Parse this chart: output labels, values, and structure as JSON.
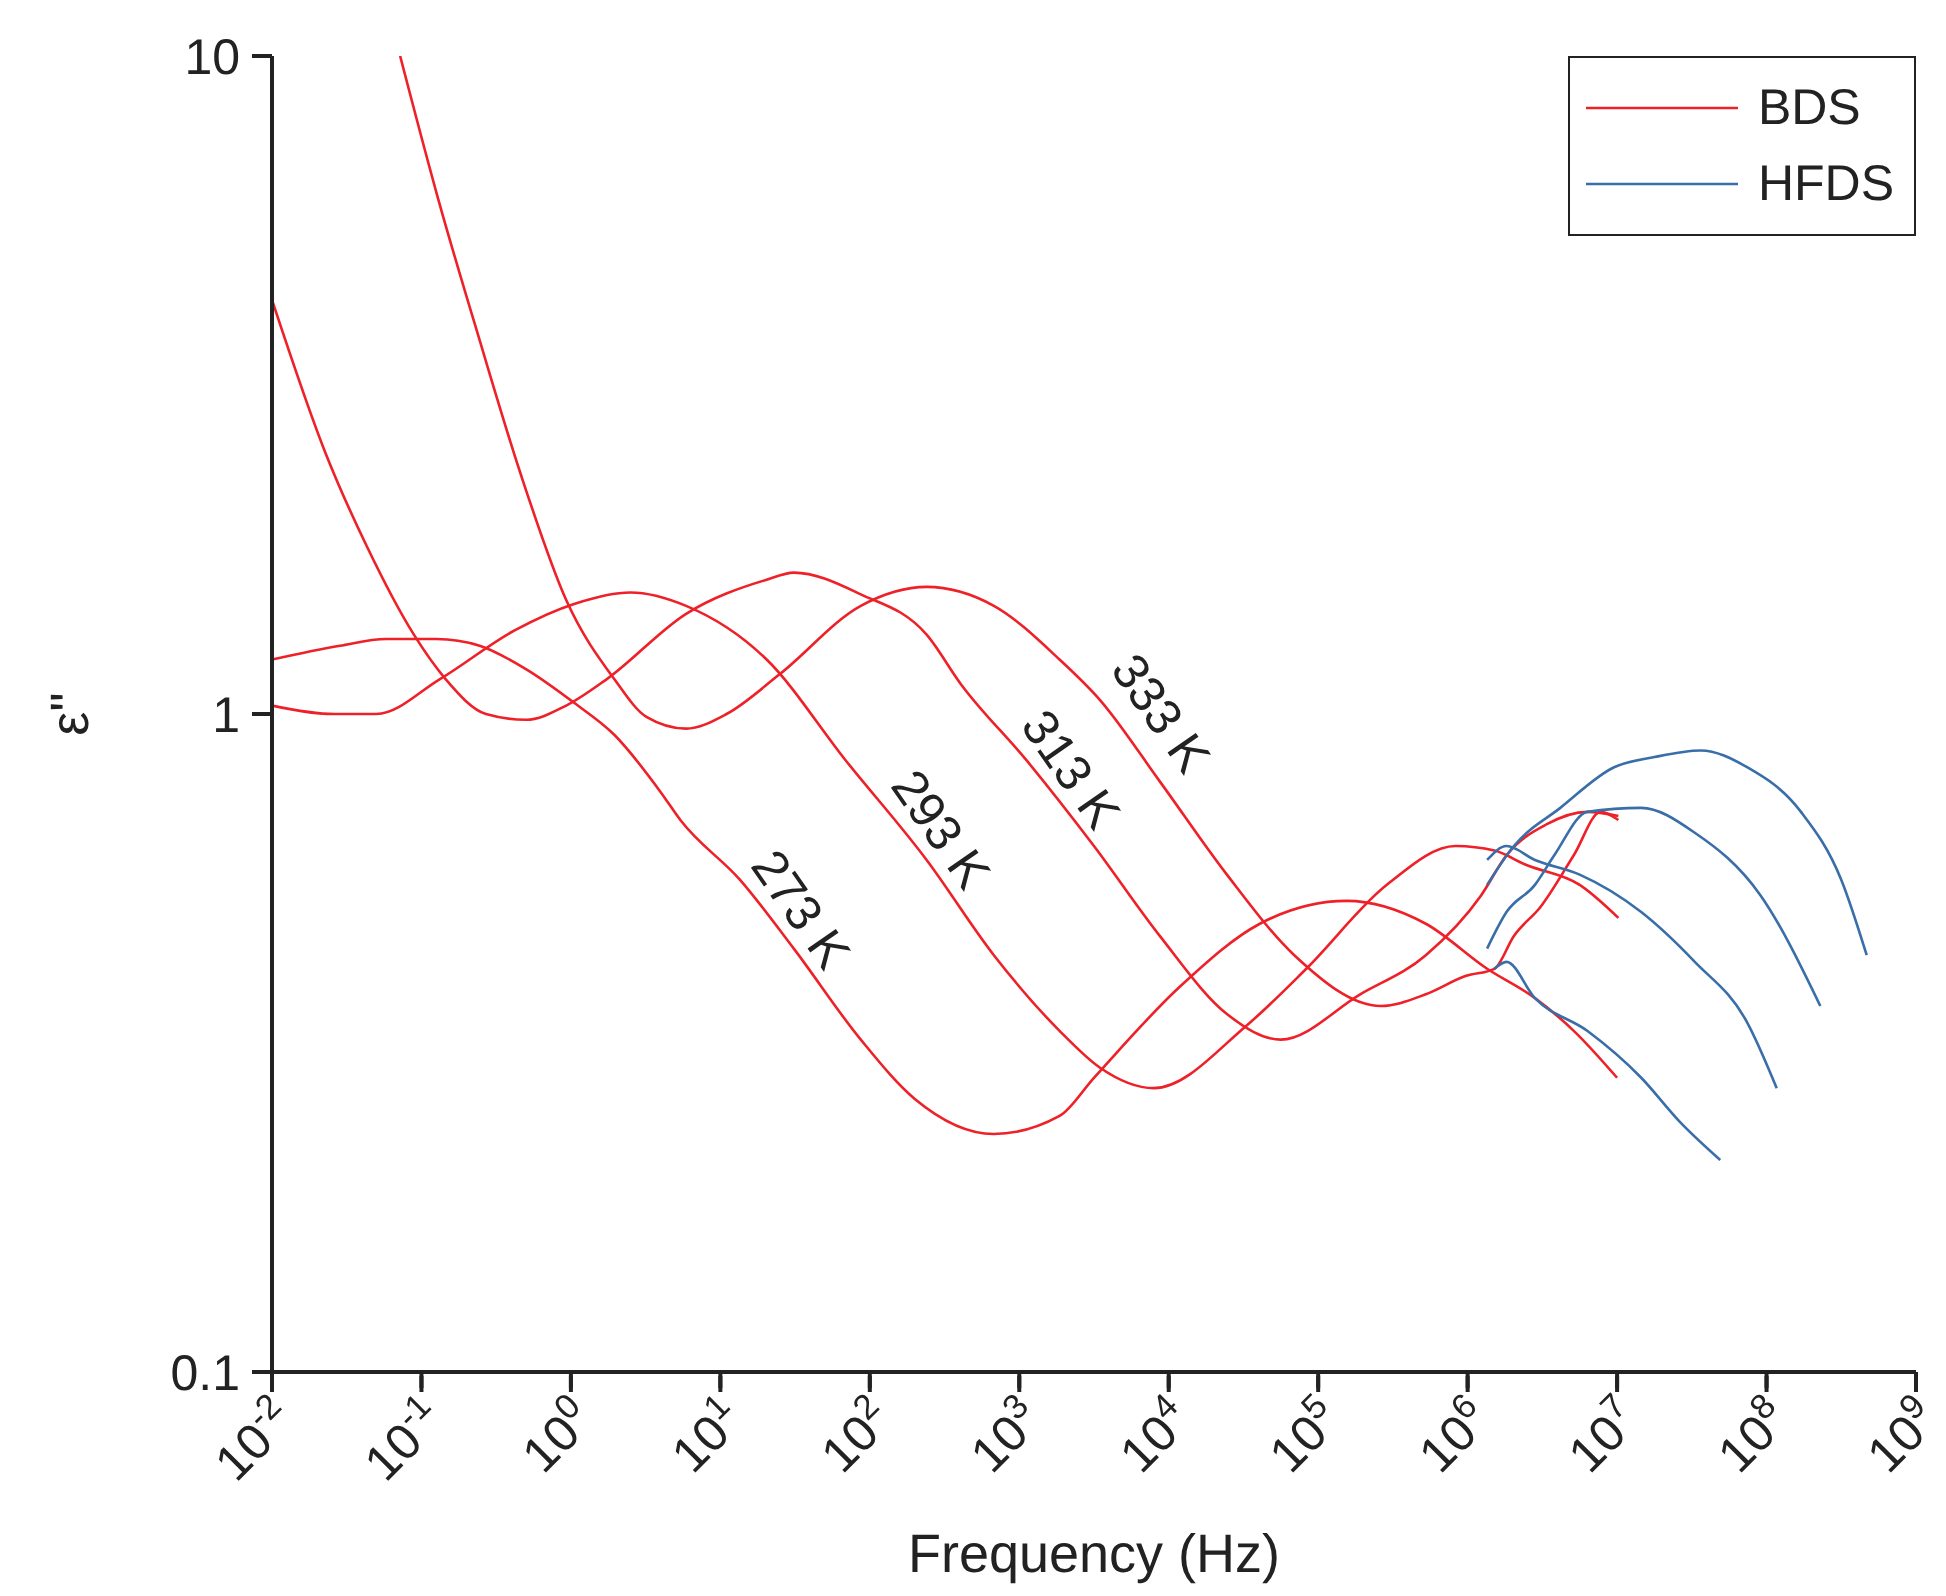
{
  "chart_data": {
    "type": "line",
    "xlabel": "Frequency (Hz)",
    "ylabel": "ε\"",
    "log": "xy",
    "legend": "top right",
    "marker": "none",
    "line_style": "solid",
    "xlim": [
      0.01,
      1000000000
    ],
    "ylim": [
      0.1,
      10
    ],
    "xticks": [
      {
        "value": 0.01,
        "label": "10$^{-2}$"
      },
      {
        "value": 0.1,
        "label": "10$^{-1}$"
      },
      {
        "value": 1,
        "label": "10$^{0}$"
      },
      {
        "value": 10,
        "label": "10$^{1}$"
      },
      {
        "value": 100,
        "label": "10$^{2}$"
      },
      {
        "value": 1000,
        "label": "10$^{3}$"
      },
      {
        "value": 10000,
        "label": "10$^{4}$"
      },
      {
        "value": 100000,
        "label": "10$^{5}$"
      },
      {
        "value": 1000000,
        "label": "10$^{6}$"
      },
      {
        "value": 10000000,
        "label": "10$^{7}$"
      },
      {
        "value": 100000000,
        "label": "10$^{8}$"
      },
      {
        "value": 1000000000,
        "label": "10$^{9}$"
      }
    ],
    "yticks": [
      0.1,
      1,
      10
    ],
    "series": [
      {
        "name": "BDS",
        "color": "#ee2028",
        "x": [
          0.01,
          0.0285,
          0.058,
          0.126,
          0.245,
          0.5,
          1.05,
          1.95,
          4.0,
          5.4,
          13.5,
          31,
          87,
          200,
          676,
          1860,
          3160,
          12000,
          40700,
          155000,
          525000,
          1350000,
          2820000,
          5130000,
          10000000
        ],
        "values": [
          1.21,
          1.27,
          1.3,
          1.3,
          1.27,
          1.17,
          1.04,
          0.93,
          0.76,
          0.69,
          0.56,
          0.44,
          0.32,
          0.26,
          0.23,
          0.245,
          0.28,
          0.386,
          0.48,
          0.52,
          0.48,
          0.41,
          0.37,
          0.33,
          0.28
        ]
      },
      {
        "color": "#ee2028",
        "x": [
          0.01,
          0.026,
          0.05,
          0.133,
          0.42,
          1.05,
          2.5,
          5.9,
          20.4,
          69,
          240,
          676,
          1860,
          3470,
          7940,
          33100,
          83200,
          288000,
          832000,
          1510000,
          2450000,
          5620000,
          10200000
        ],
        "values": [
          1.03,
          1.0,
          1.0,
          1.13,
          1.34,
          1.47,
          1.53,
          1.46,
          1.21,
          0.85,
          0.6,
          0.43,
          0.33,
          0.29,
          0.27,
          0.336,
          0.41,
          0.55,
          0.63,
          0.62,
          0.59,
          0.55,
          0.49
        ]
      },
      {
        "color": "#ee2028",
        "x": [
          0.01,
          0.023,
          0.043,
          0.089,
          0.145,
          0.27,
          0.5,
          0.93,
          1.74,
          5.9,
          20.4,
          31,
          87,
          240,
          407,
          1120,
          3160,
          8710,
          24500,
          56200,
          191000,
          525000,
          1230000,
          1820000,
          3390000,
          6310000,
          10200000
        ],
        "values": [
          4.26,
          2.48,
          1.8,
          1.32,
          1.13,
          1.0,
          0.98,
          1.03,
          1.13,
          1.42,
          1.6,
          1.64,
          1.52,
          1.32,
          1.11,
          0.85,
          0.63,
          0.46,
          0.35,
          0.32,
          0.375,
          0.43,
          0.53,
          0.61,
          0.68,
          0.71,
          0.7
        ]
      },
      {
        "color": "#ee2028",
        "x": [
          0.072,
          0.13,
          0.245,
          0.46,
          0.93,
          1.95,
          3.2,
          5.9,
          11,
          25,
          87,
          240,
          676,
          1860,
          3470,
          8710,
          24500,
          69200,
          263000,
          525000,
          977000,
          1510000,
          2040000,
          3090000,
          5130000,
          7760000,
          10200000
        ],
        "values": [
          10,
          6.04,
          3.7,
          2.32,
          1.49,
          1.13,
          0.99,
          0.95,
          1.0,
          1.15,
          1.46,
          1.56,
          1.46,
          1.21,
          1.05,
          0.79,
          0.57,
          0.43,
          0.36,
          0.375,
          0.4,
          0.41,
          0.46,
          0.51,
          0.61,
          0.71,
          0.69
        ]
      },
      {
        "name": "HFDS",
        "color": "#3a6ea8",
        "x": [
          1510000,
          1820000,
          2820000,
          6310000,
          14500000,
          26300000,
          49000000
        ],
        "values": [
          0.41,
          0.42,
          0.37,
          0.33,
          0.28,
          0.24,
          0.21
        ]
      },
      {
        "color": "#3a6ea8",
        "x": [
          1350000,
          1820000,
          2820000,
          5620000,
          14500000,
          33100000,
          74100000,
          117000000
        ],
        "values": [
          0.6,
          0.63,
          0.6,
          0.57,
          0.5,
          0.42,
          0.34,
          0.27
        ]
      },
      {
        "color": "#3a6ea8",
        "x": [
          1350000,
          1820000,
          2820000,
          3800000,
          6310000,
          14500000,
          33100000,
          91200000,
          229000000
        ],
        "values": [
          0.44,
          0.5,
          0.55,
          0.61,
          0.71,
          0.72,
          0.66,
          0.53,
          0.36
        ]
      },
      {
        "color": "#3a6ea8",
        "x": [
          1350000,
          2040000,
          4170000,
          9550000,
          17800000,
          36300000,
          74100000,
          170000000,
          316000000,
          468000000
        ],
        "values": [
          0.55,
          0.63,
          0.72,
          0.83,
          0.86,
          0.88,
          0.83,
          0.71,
          0.56,
          0.43
        ]
      }
    ],
    "annotations": [
      "273 K",
      "293 K",
      "313 K",
      "333 K"
    ]
  }
}
